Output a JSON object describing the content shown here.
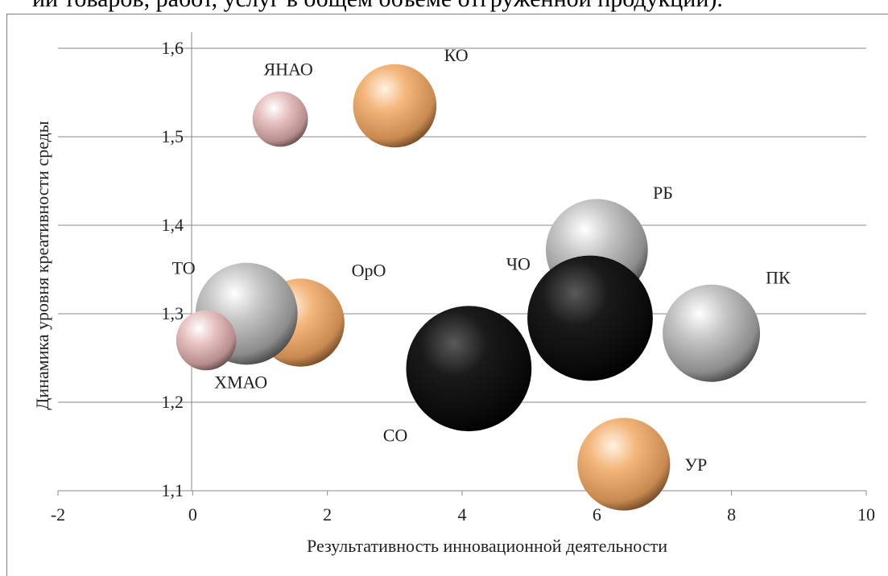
{
  "caption_fragment": "ии товаров, работ, услуг в общем объеме отгруженной продукции).",
  "chart_data": {
    "type": "bubble",
    "xlabel": "Результативность инновационной деятельности",
    "ylabel": "Динамика уровня креативности среды",
    "xlim": [
      -2,
      10
    ],
    "ylim": [
      1.1,
      1.6
    ],
    "x_ticks": [
      -2,
      0,
      2,
      4,
      6,
      8,
      10
    ],
    "x_tick_labels": [
      "-2",
      "0",
      "2",
      "4",
      "6",
      "8",
      "10"
    ],
    "y_ticks": [
      1.1,
      1.2,
      1.3,
      1.4,
      1.5,
      1.6
    ],
    "y_tick_labels": [
      "1,1",
      "1,2",
      "1,3",
      "1,4",
      "1,5",
      "1,6"
    ],
    "grid": "horizontal",
    "points": [
      {
        "label": "ЯНАО",
        "x": 1.3,
        "y": 1.52,
        "size": 0.6,
        "color": "pink",
        "label_pos": "top"
      },
      {
        "label": "КО",
        "x": 3.0,
        "y": 1.535,
        "size": 1.2,
        "color": "peach",
        "label_pos": "top-right"
      },
      {
        "label": "РБ",
        "x": 6.0,
        "y": 1.372,
        "size": 1.6,
        "color": "silver",
        "label_pos": "top-right"
      },
      {
        "label": "ПК",
        "x": 7.7,
        "y": 1.278,
        "size": 1.5,
        "color": "silver",
        "label_pos": "top-right"
      },
      {
        "label": "ОрО",
        "x": 1.6,
        "y": 1.29,
        "size": 1.3,
        "color": "peach",
        "label_pos": "top-right"
      },
      {
        "label": "ТО",
        "x": 0.8,
        "y": 1.3,
        "size": 1.6,
        "color": "silver",
        "label_pos": "top-left"
      },
      {
        "label": "ХМАО",
        "x": 0.2,
        "y": 1.27,
        "size": 0.7,
        "color": "pink",
        "label_pos": "bottom-right"
      },
      {
        "label": "ЧО",
        "x": 5.9,
        "y": 1.295,
        "size": 2.1,
        "color": "black",
        "label_pos": "top-left"
      },
      {
        "label": "СО",
        "x": 4.1,
        "y": 1.238,
        "size": 2.1,
        "color": "black",
        "label_pos": "bottom-left"
      },
      {
        "label": "УР",
        "x": 6.4,
        "y": 1.13,
        "size": 1.4,
        "color": "peach",
        "label_pos": "right"
      }
    ],
    "colors": {
      "pink": "#e8b9b9",
      "peach": "#f2b27a",
      "silver": "#b5b5b5",
      "black": "#111111"
    }
  }
}
